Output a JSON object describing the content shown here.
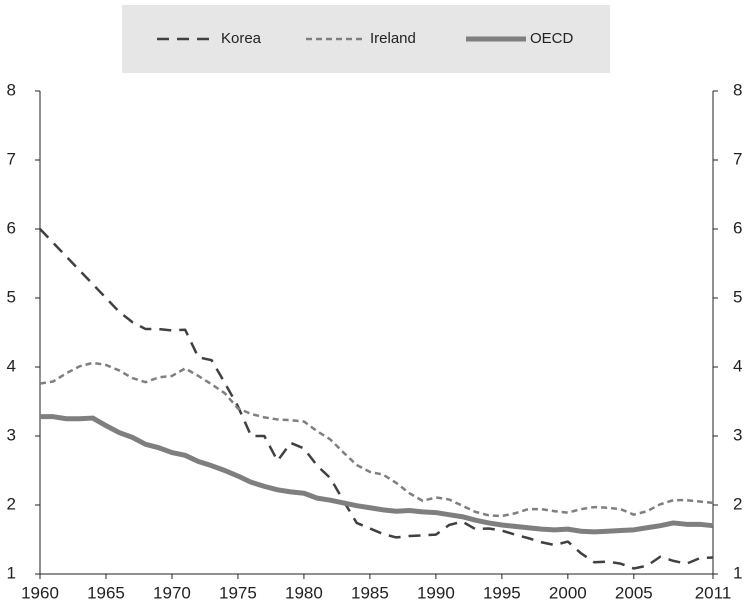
{
  "chart_data": {
    "type": "line",
    "x": [
      1960,
      1961,
      1962,
      1963,
      1964,
      1965,
      1966,
      1967,
      1968,
      1969,
      1970,
      1971,
      1972,
      1973,
      1974,
      1975,
      1976,
      1977,
      1978,
      1979,
      1980,
      1981,
      1982,
      1983,
      1984,
      1985,
      1986,
      1987,
      1988,
      1989,
      1990,
      1991,
      1992,
      1993,
      1994,
      1995,
      1996,
      1997,
      1998,
      1999,
      2000,
      2001,
      2002,
      2003,
      2004,
      2005,
      2006,
      2007,
      2008,
      2009,
      2010,
      2011
    ],
    "series": [
      {
        "name": "Korea",
        "color": "#404040",
        "line_style": "dashed",
        "values": [
          6.0,
          5.8,
          5.6,
          5.4,
          5.2,
          5.0,
          4.8,
          4.65,
          4.55,
          4.55,
          4.53,
          4.54,
          4.14,
          4.1,
          3.77,
          3.43,
          3.0,
          3.0,
          2.64,
          2.9,
          2.82,
          2.57,
          2.39,
          2.06,
          1.74,
          1.66,
          1.58,
          1.53,
          1.55,
          1.56,
          1.57,
          1.71,
          1.76,
          1.65,
          1.66,
          1.63,
          1.57,
          1.52,
          1.46,
          1.42,
          1.47,
          1.3,
          1.17,
          1.18,
          1.15,
          1.08,
          1.12,
          1.25,
          1.19,
          1.15,
          1.23,
          1.24
        ]
      },
      {
        "name": "Ireland",
        "color": "#7f7f7f",
        "line_style": "dotted",
        "values": [
          3.76,
          3.79,
          3.91,
          4.01,
          4.06,
          4.03,
          3.95,
          3.84,
          3.78,
          3.85,
          3.87,
          3.98,
          3.87,
          3.75,
          3.62,
          3.4,
          3.32,
          3.27,
          3.24,
          3.23,
          3.21,
          3.07,
          2.95,
          2.76,
          2.58,
          2.48,
          2.44,
          2.32,
          2.17,
          2.06,
          2.11,
          2.08,
          1.99,
          1.9,
          1.85,
          1.84,
          1.88,
          1.94,
          1.94,
          1.91,
          1.89,
          1.94,
          1.97,
          1.96,
          1.94,
          1.86,
          1.91,
          2.01,
          2.07,
          2.07,
          2.05,
          2.03
        ]
      },
      {
        "name": "OECD",
        "color": "#7f7f7f",
        "line_style": "solid",
        "values": [
          3.28,
          3.28,
          3.25,
          3.25,
          3.26,
          3.15,
          3.05,
          2.98,
          2.88,
          2.83,
          2.76,
          2.72,
          2.63,
          2.57,
          2.5,
          2.42,
          2.33,
          2.27,
          2.22,
          2.19,
          2.17,
          2.1,
          2.07,
          2.03,
          1.99,
          1.96,
          1.93,
          1.91,
          1.92,
          1.9,
          1.89,
          1.86,
          1.83,
          1.78,
          1.74,
          1.71,
          1.69,
          1.67,
          1.65,
          1.64,
          1.65,
          1.62,
          1.61,
          1.62,
          1.63,
          1.64,
          1.67,
          1.7,
          1.74,
          1.72,
          1.72,
          1.7
        ]
      }
    ],
    "xlim": [
      1960,
      2011
    ],
    "xticks": [
      1960,
      1965,
      1970,
      1975,
      1980,
      1985,
      1990,
      1995,
      2000,
      2005,
      2011
    ],
    "ylim": [
      1,
      8
    ],
    "yticks": [
      1,
      2,
      3,
      4,
      5,
      6,
      7,
      8
    ],
    "y2lim": [
      1,
      8
    ],
    "y2ticks": [
      1,
      2,
      3,
      4,
      5,
      6,
      7,
      8
    ],
    "legend": "top"
  }
}
